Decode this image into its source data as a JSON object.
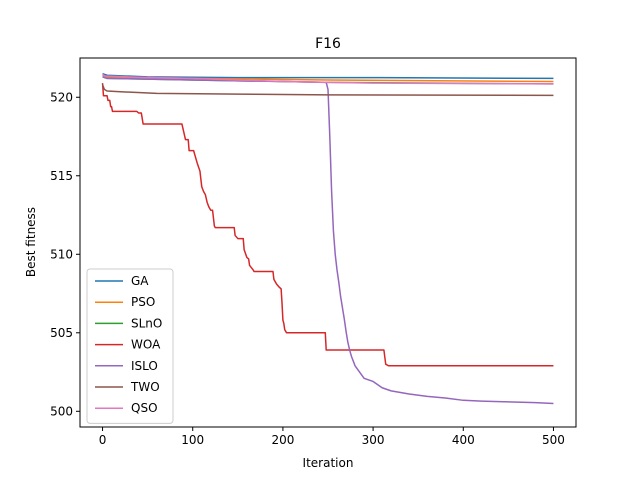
{
  "chart_data": {
    "type": "line",
    "title": "F16",
    "xlabel": "Iteration",
    "ylabel": "Best fitness",
    "xlim": [
      -25,
      525
    ],
    "ylim": [
      499,
      522.5
    ],
    "xticks": [
      0,
      100,
      200,
      300,
      400,
      500
    ],
    "yticks": [
      500,
      505,
      510,
      515,
      520
    ],
    "grid": false,
    "legend_position": "lower-left",
    "series": [
      {
        "name": "GA",
        "color": "#1f77b4",
        "points": [
          [
            0,
            521.5
          ],
          [
            5,
            521.4
          ],
          [
            50,
            521.3
          ],
          [
            150,
            521.25
          ],
          [
            300,
            521.25
          ],
          [
            500,
            521.2
          ]
        ]
      },
      {
        "name": "PSO",
        "color": "#ff7f0e",
        "points": [
          [
            0,
            521.4
          ],
          [
            5,
            521.3
          ],
          [
            100,
            521.2
          ],
          [
            250,
            521.1
          ],
          [
            500,
            521.0
          ]
        ]
      },
      {
        "name": "SLnO",
        "color": "#2ca02c",
        "points": [
          [
            0,
            521.3
          ],
          [
            5,
            521.2
          ],
          [
            100,
            521.1
          ],
          [
            250,
            520.95
          ],
          [
            500,
            520.85
          ]
        ]
      },
      {
        "name": "WOA",
        "color": "#d62728",
        "points": [
          [
            0,
            520.9
          ],
          [
            1,
            520.1
          ],
          [
            5,
            520.1
          ],
          [
            6,
            519.8
          ],
          [
            8,
            519.8
          ],
          [
            9,
            519.4
          ],
          [
            10,
            519.4
          ],
          [
            11,
            519.1
          ],
          [
            38,
            519.1
          ],
          [
            40,
            519.0
          ],
          [
            43,
            519.0
          ],
          [
            45,
            518.3
          ],
          [
            88,
            518.3
          ],
          [
            90,
            517.8
          ],
          [
            92,
            517.3
          ],
          [
            95,
            517.3
          ],
          [
            96,
            516.6
          ],
          [
            101,
            516.6
          ],
          [
            103,
            516.2
          ],
          [
            105,
            515.8
          ],
          [
            108,
            515.3
          ],
          [
            110,
            514.3
          ],
          [
            112,
            514.0
          ],
          [
            114,
            513.8
          ],
          [
            116,
            513.3
          ],
          [
            118,
            513.0
          ],
          [
            120,
            512.8
          ],
          [
            122,
            512.8
          ],
          [
            123,
            512.3
          ],
          [
            124,
            511.8
          ],
          [
            125,
            511.7
          ],
          [
            146,
            511.7
          ],
          [
            147,
            511.2
          ],
          [
            150,
            511.0
          ],
          [
            156,
            511.0
          ],
          [
            157,
            510.3
          ],
          [
            160,
            509.8
          ],
          [
            162,
            509.7
          ],
          [
            163,
            509.3
          ],
          [
            167,
            509.0
          ],
          [
            168,
            508.9
          ],
          [
            189,
            508.9
          ],
          [
            190,
            508.4
          ],
          [
            193,
            508.1
          ],
          [
            196,
            507.9
          ],
          [
            198,
            507.8
          ],
          [
            199,
            506.9
          ],
          [
            200,
            505.8
          ],
          [
            201,
            505.6
          ],
          [
            202,
            505.2
          ],
          [
            204,
            505.0
          ],
          [
            247,
            505.0
          ],
          [
            248,
            503.9
          ],
          [
            312,
            503.9
          ],
          [
            314,
            503.0
          ],
          [
            317,
            502.9
          ],
          [
            500,
            502.9
          ]
        ]
      },
      {
        "name": "ISLO",
        "color": "#9467bd",
        "points": [
          [
            0,
            521.3
          ],
          [
            5,
            521.2
          ],
          [
            100,
            521.1
          ],
          [
            200,
            521.0
          ],
          [
            248,
            520.95
          ],
          [
            250,
            520.5
          ],
          [
            252,
            517.5
          ],
          [
            254,
            514.0
          ],
          [
            256,
            511.5
          ],
          [
            258,
            510.0
          ],
          [
            260,
            509.0
          ],
          [
            262,
            508.2
          ],
          [
            264,
            507.3
          ],
          [
            266,
            506.6
          ],
          [
            268,
            505.9
          ],
          [
            270,
            505.1
          ],
          [
            272,
            504.4
          ],
          [
            274,
            503.9
          ],
          [
            276,
            503.5
          ],
          [
            278,
            503.2
          ],
          [
            280,
            502.9
          ],
          [
            285,
            502.5
          ],
          [
            290,
            502.1
          ],
          [
            300,
            501.9
          ],
          [
            310,
            501.5
          ],
          [
            320,
            501.3
          ],
          [
            340,
            501.1
          ],
          [
            360,
            500.95
          ],
          [
            380,
            500.85
          ],
          [
            400,
            500.7
          ],
          [
            420,
            500.65
          ],
          [
            450,
            500.6
          ],
          [
            480,
            500.55
          ],
          [
            500,
            500.5
          ]
        ]
      },
      {
        "name": "TWO",
        "color": "#8c564b",
        "points": [
          [
            0,
            520.8
          ],
          [
            2,
            520.5
          ],
          [
            5,
            520.4
          ],
          [
            20,
            520.35
          ],
          [
            60,
            520.25
          ],
          [
            150,
            520.2
          ],
          [
            250,
            520.15
          ],
          [
            500,
            520.12
          ]
        ]
      },
      {
        "name": "QSO",
        "color": "#e377c2",
        "points": [
          [
            0,
            521.45
          ],
          [
            3,
            521.35
          ],
          [
            50,
            521.25
          ],
          [
            100,
            521.2
          ],
          [
            200,
            521.0
          ],
          [
            300,
            520.9
          ],
          [
            500,
            520.85
          ]
        ]
      }
    ]
  }
}
